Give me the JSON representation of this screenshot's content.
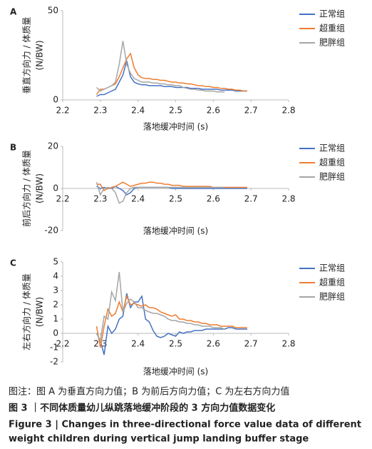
{
  "chart_data": [
    {
      "type": "line",
      "panel_label": "A",
      "ylabel": [
        "垂直方向力 / 体质量",
        "(N/BW)"
      ],
      "xlabel": "落地缓冲时间 (s)",
      "x": [
        2.29,
        2.3,
        2.31,
        2.32,
        2.33,
        2.34,
        2.35,
        2.36,
        2.37,
        2.38,
        2.39,
        2.4,
        2.41,
        2.42,
        2.43,
        2.44,
        2.45,
        2.46,
        2.47,
        2.48,
        2.49,
        2.5,
        2.51,
        2.52,
        2.53,
        2.54,
        2.55,
        2.56,
        2.57,
        2.58,
        2.59,
        2.6,
        2.61,
        2.62,
        2.63,
        2.64,
        2.65,
        2.66,
        2.67,
        2.68,
        2.69
      ],
      "series": [
        {
          "name": "正常组",
          "color": "#4472c4",
          "values": [
            2,
            3,
            3,
            4,
            5,
            6,
            10,
            14,
            22,
            13,
            10,
            9,
            8.5,
            8.5,
            8,
            8,
            8,
            8,
            7.5,
            7.5,
            7.5,
            7,
            7,
            7,
            7,
            6.5,
            6.5,
            6.5,
            6,
            6,
            6,
            6,
            6,
            5.5,
            5.5,
            5.5,
            5.5,
            5,
            5,
            5,
            5
          ]
        },
        {
          "name": "超重组",
          "color": "#ed7d31",
          "values": [
            3,
            6,
            6,
            7,
            8,
            9,
            13,
            18,
            23,
            26,
            18,
            14,
            12.5,
            12,
            12,
            11.5,
            11.5,
            11,
            11,
            10.5,
            10,
            10,
            9.5,
            9.5,
            9,
            9,
            8.5,
            8,
            8,
            7.5,
            7.5,
            7,
            7,
            6.5,
            6.5,
            6,
            6,
            5.5,
            5.5,
            5,
            5
          ]
        },
        {
          "name": "肥胖组",
          "color": "#a5a5a5",
          "values": [
            7,
            5,
            6,
            7,
            8,
            10,
            20,
            33,
            20,
            15,
            12,
            11,
            10,
            10,
            10,
            9.5,
            9.5,
            9,
            9,
            8.5,
            8.5,
            8,
            8,
            7,
            6.5,
            6,
            6,
            5.5,
            5.5,
            5,
            5,
            5,
            4.5,
            4.5,
            4.5,
            null,
            null,
            null,
            null,
            null,
            null
          ]
        }
      ],
      "xlim": [
        2.2,
        2.8
      ],
      "xticks": [
        2.2,
        2.3,
        2.4,
        2.5,
        2.6,
        2.7,
        2.8
      ],
      "ylim": [
        0,
        50
      ],
      "yticks": [
        0,
        50
      ],
      "legend": "right"
    },
    {
      "type": "line",
      "panel_label": "B",
      "ylabel": [
        "前后方向力 / 体质量",
        "(N/BW)"
      ],
      "xlabel": "落地缓冲时间 (s)",
      "x": [
        2.29,
        2.3,
        2.31,
        2.32,
        2.33,
        2.34,
        2.35,
        2.36,
        2.37,
        2.38,
        2.39,
        2.4,
        2.41,
        2.42,
        2.43,
        2.44,
        2.45,
        2.46,
        2.47,
        2.48,
        2.49,
        2.5,
        2.51,
        2.52,
        2.53,
        2.54,
        2.55,
        2.56,
        2.57,
        2.58,
        2.59,
        2.6,
        2.61,
        2.62,
        2.63,
        2.64,
        2.65,
        2.66,
        2.67,
        2.68,
        2.69
      ],
      "series": [
        {
          "name": "正常组",
          "color": "#4472c4",
          "values": [
            1,
            0,
            0.5,
            0,
            0,
            1,
            0,
            -1,
            -3,
            -2,
            0,
            0.5,
            0.5,
            0.5,
            0.5,
            0.5,
            0.5,
            0.5,
            0.5,
            0.5,
            0,
            0,
            0,
            0,
            0,
            0,
            0,
            0,
            0,
            0,
            0,
            0,
            0,
            0,
            0,
            0,
            0,
            0,
            0,
            0,
            0
          ]
        },
        {
          "name": "超重组",
          "color": "#ed7d31",
          "values": [
            2,
            2,
            -1,
            0,
            0.5,
            1,
            2,
            3,
            2,
            1,
            1.5,
            2,
            2.5,
            2.5,
            3,
            3,
            2.5,
            2.5,
            2,
            2,
            1.5,
            1.5,
            1.5,
            1,
            1,
            1,
            1,
            1,
            1,
            1,
            1,
            0.5,
            0.5,
            0.5,
            0.5,
            0.5,
            0.5,
            0.5,
            0.5,
            0.5,
            0.5
          ]
        },
        {
          "name": "肥胖组",
          "color": "#a5a5a5",
          "values": [
            3,
            -3,
            0,
            0.5,
            0,
            -2,
            -7,
            -6,
            -2,
            0,
            0.5,
            0.5,
            0.5,
            0.5,
            0.5,
            0.5,
            0.5,
            0.5,
            0.5,
            0.5,
            0.5,
            0.5,
            0.5,
            0.5,
            0.5,
            0.5,
            0.5,
            0.5,
            0.5,
            0.5,
            0.5,
            0.5,
            0.5,
            0.5,
            0.5,
            null,
            null,
            null,
            null,
            null,
            null
          ]
        }
      ],
      "xlim": [
        2.2,
        2.8
      ],
      "xticks": [
        2.2,
        2.3,
        2.4,
        2.5,
        2.6,
        2.7,
        2.8
      ],
      "ylim": [
        -20,
        20
      ],
      "yticks": [
        -20,
        0,
        20
      ],
      "legend": "right"
    },
    {
      "type": "line",
      "panel_label": "C",
      "ylabel": [
        "左右方向力 / 体质量",
        "(N/BW)"
      ],
      "xlabel": "落地缓冲时间 (s)",
      "x": [
        2.29,
        2.3,
        2.31,
        2.32,
        2.33,
        2.34,
        2.35,
        2.36,
        2.37,
        2.38,
        2.39,
        2.4,
        2.41,
        2.42,
        2.43,
        2.44,
        2.45,
        2.46,
        2.47,
        2.48,
        2.49,
        2.5,
        2.51,
        2.52,
        2.53,
        2.54,
        2.55,
        2.56,
        2.57,
        2.58,
        2.59,
        2.6,
        2.61,
        2.62,
        2.63,
        2.64,
        2.65,
        2.66,
        2.67,
        2.68,
        2.69
      ],
      "series": [
        {
          "name": "正常组",
          "color": "#4472c4",
          "values": [
            0,
            -0.5,
            -1.5,
            0.5,
            0,
            0.3,
            1,
            1.2,
            2.8,
            1.8,
            2.2,
            2.2,
            2.6,
            1,
            0.8,
            0.2,
            -0.2,
            -0.3,
            -0.2,
            0,
            -0.1,
            -0.2,
            0.1,
            0,
            0.1,
            0.1,
            0.2,
            0.2,
            0.2,
            0.3,
            0.3,
            0.3,
            0.3,
            0.3,
            0.3,
            0.4,
            0.4,
            0.3,
            0.3,
            0.3,
            0.3
          ]
        },
        {
          "name": "超重组",
          "color": "#ed7d31",
          "values": [
            0.5,
            -1,
            0.5,
            1.7,
            1.2,
            1.4,
            2.2,
            1.5,
            2.6,
            2,
            2.1,
            2,
            1.9,
            2,
            1.8,
            1.8,
            1.7,
            1.5,
            1.4,
            1.3,
            1.2,
            1.3,
            1,
            1,
            0.9,
            0.9,
            0.8,
            0.8,
            0.7,
            0.7,
            0.6,
            0.6,
            0.6,
            0.5,
            0.5,
            0.5,
            0.5,
            0.4,
            0.4,
            0.4,
            0.4
          ]
        },
        {
          "name": "肥胖组",
          "color": "#a5a5a5",
          "values": [
            0,
            -0.5,
            1.2,
            1,
            2.9,
            2.3,
            4.3,
            1.5,
            2.1,
            2.4,
            2.2,
            1.8,
            1.8,
            1.6,
            1.5,
            1.4,
            1.4,
            1.3,
            1.2,
            1,
            0.9,
            0.9,
            0.8,
            0.8,
            0.7,
            0.7,
            0.6,
            0.6,
            0.5,
            0.5,
            0.5,
            0.4,
            0.4,
            0.4,
            0.3,
            null,
            null,
            null,
            null,
            null,
            null
          ]
        }
      ],
      "xlim": [
        2.2,
        2.8
      ],
      "xticks": [
        2.2,
        2.3,
        2.4,
        2.5,
        2.6,
        2.7,
        2.8
      ],
      "ylim": [
        -2,
        5
      ],
      "yticks": [
        -2,
        -1,
        0,
        1,
        2,
        3,
        4,
        5
      ],
      "legend": "right"
    }
  ],
  "caption": {
    "note": "图注：图 A 为垂直方向力值；B 为前后方向力值；C 为左右方向力值",
    "title_zh": "图 3 ｜不同体质量幼儿纵跳落地缓冲阶段的 3 方向力值数据变化",
    "title_en": [
      "Figure 3 | Changes in three-directional force value data of different",
      "weight children during vertical jump landing buffer stage"
    ]
  }
}
